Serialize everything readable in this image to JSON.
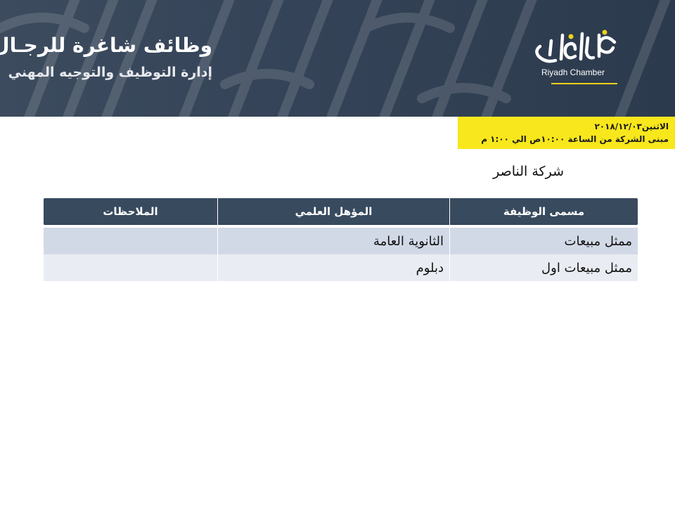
{
  "header": {
    "title": "وظائف شاغرة للرجـال",
    "subtitle": "إدارة التوظيف والتوجيه المهني",
    "logo_arabic": "غرفة الرياض",
    "logo_english": "Riyadh Chamber"
  },
  "info_box": {
    "line1": "الاثنين٢٠١٨/١٢/٠٣",
    "line2": "مبنى الشركة من الساعة ١٠:٠٠ص الي ١:٠٠ م"
  },
  "company_name": "شركة الناصر",
  "table": {
    "headers": [
      "مسمى الوظيفة",
      "المؤهل العلمي",
      "الملاحظات"
    ],
    "rows": [
      {
        "title": "ممثل مبيعات",
        "qualification": "الثانوية العامة",
        "notes": ""
      },
      {
        "title": "ممثل مبيعات اول",
        "qualification": "دبلوم",
        "notes": ""
      }
    ]
  },
  "colors": {
    "banner": "#344357",
    "accent_yellow": "#f8e71c",
    "table_header": "#384a5e",
    "row_odd": "#d2d9e6",
    "row_even": "#e9edf3"
  }
}
